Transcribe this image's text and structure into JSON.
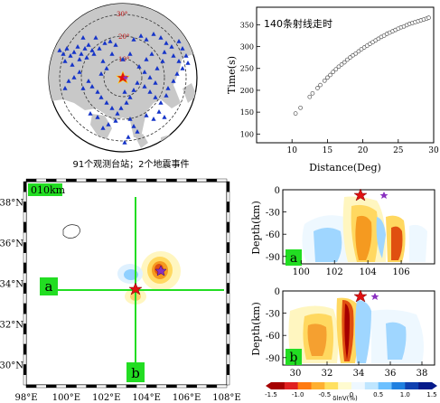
{
  "station_map": {
    "caption": "91个观测台站；2个地震事件",
    "ring_labels": [
      "30°",
      "20°",
      "10°"
    ]
  },
  "travel_time": {
    "label": "140条射线走时",
    "ylabel": "Time(s)",
    "xlabel": "Distance(Deg)",
    "xticks": [
      "10",
      "15",
      "20",
      "25",
      "30"
    ],
    "yticks": [
      "100",
      "150",
      "200",
      "250",
      "300",
      "350"
    ]
  },
  "map_panel": {
    "depth_tag": "010km",
    "profile_a": "a",
    "profile_b": "b",
    "xticks": [
      "98°E",
      "100°E",
      "102°E",
      "104°E",
      "106°E",
      "108°E"
    ],
    "yticks": [
      "38°N",
      "36°N",
      "34°N",
      "32°N",
      "30°N"
    ]
  },
  "section_a": {
    "tag": "a",
    "ylabel": "Depth(km)",
    "yticks": [
      "0",
      "-30",
      "-60",
      "-90"
    ],
    "xticks": [
      "100",
      "102",
      "104",
      "106"
    ]
  },
  "section_b": {
    "tag": "b",
    "ylabel": "Depth(km)",
    "yticks": [
      "0",
      "-30",
      "-60",
      "-90"
    ],
    "xticks": [
      "30",
      "32",
      "34",
      "36",
      "38"
    ]
  },
  "colorbar": {
    "label": "δlnV(%)",
    "ticks": [
      "-1.5",
      "-1.0",
      "-0.5",
      "0",
      "0.5",
      "1.0",
      "1.5"
    ],
    "colors": [
      "#a50000",
      "#e02020",
      "#ff7a10",
      "#ffb030",
      "#ffe060",
      "#fffbd0",
      "#eef8ff",
      "#bfe6ff",
      "#6cc0ff",
      "#2080e0",
      "#1040b0",
      "#061a8a"
    ]
  },
  "chart_data": [
    {
      "type": "scatter",
      "title": "",
      "label": "140条射线走时",
      "xlabel": "Distance(Deg)",
      "ylabel": "Time(s)",
      "xlim": [
        5,
        30
      ],
      "ylim": [
        80,
        390
      ],
      "series": [
        {
          "x": [
            10.5,
            11.2,
            12.5,
            12.9,
            13.6,
            14.0,
            14.6,
            15.0,
            15.4,
            15.8,
            16.2,
            16.6,
            17.0,
            17.4,
            17.8,
            18.2,
            18.6,
            19.0,
            19.4,
            19.8,
            20.2,
            20.6,
            21.0,
            21.4,
            21.8,
            22.2,
            22.6,
            23.0,
            23.4,
            23.8,
            24.2,
            24.6,
            25.0,
            25.4,
            25.8,
            26.2,
            26.6,
            27.0,
            27.4,
            27.8,
            28.2,
            28.6,
            29.0,
            29.3
          ],
          "y": [
            147,
            160,
            185,
            193,
            205,
            212,
            222,
            229,
            235,
            242,
            248,
            254,
            259,
            264,
            270,
            275,
            280,
            284,
            289,
            294,
            298,
            302,
            306,
            310,
            314,
            318,
            322,
            325,
            329,
            332,
            335,
            338,
            341,
            344,
            346,
            349,
            352,
            354,
            356,
            358,
            360,
            362,
            364,
            366
          ]
        }
      ]
    }
  ]
}
